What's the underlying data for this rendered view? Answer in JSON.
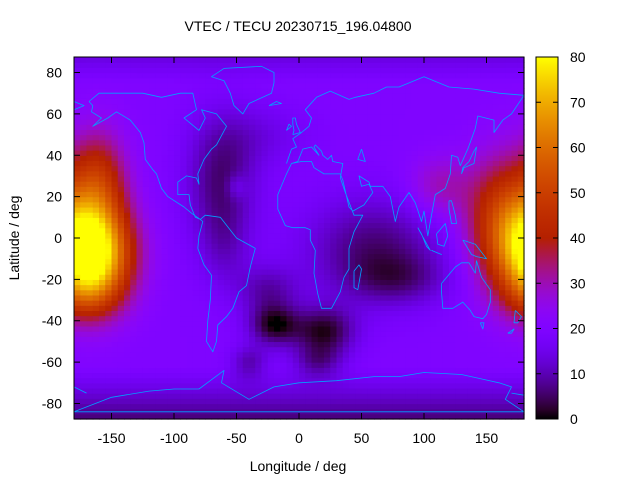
{
  "chart_data": {
    "type": "heatmap",
    "title": "VTEC / TECU 20230715_196.04800",
    "xlabel": "Longitude / deg",
    "ylabel": "Latitude / deg",
    "xlim": [
      -180,
      180
    ],
    "ylim": [
      -87.5,
      87.5
    ],
    "x_ticks": [
      -150,
      -100,
      -50,
      0,
      50,
      100,
      150
    ],
    "y_ticks": [
      -80,
      -60,
      -40,
      -20,
      0,
      20,
      40,
      60,
      80
    ],
    "colorbar": {
      "range": [
        0,
        80
      ],
      "ticks": [
        0,
        10,
        20,
        30,
        40,
        50,
        60,
        70,
        80
      ],
      "palette": "black-purple-red-orange-yellow"
    },
    "coastline_color": "#00a2ff",
    "grid_step": {
      "lon": 5,
      "lat": 2.5
    },
    "features": [
      {
        "lon": -165,
        "lat": -8,
        "value": 64,
        "lon_radius": 30,
        "lat_radius": 24
      },
      {
        "lon": -160,
        "lat": 28,
        "value": 22,
        "lon_radius": 22,
        "lat_radius": 24
      },
      {
        "lon": -172,
        "lat": -28,
        "value": 8,
        "lon_radius": 25,
        "lat_radius": 12
      },
      {
        "lon": 165,
        "lat": 8,
        "value": 30,
        "lon_radius": 30,
        "lat_radius": 30
      },
      {
        "lon": 112,
        "lat": 25,
        "value": 10,
        "lon_radius": 25,
        "lat_radius": 15
      },
      {
        "lon": -62,
        "lat": 28,
        "value": -14,
        "lon_radius": 28,
        "lat_radius": 30
      },
      {
        "lon": 60,
        "lat": -5,
        "value": -14,
        "lon_radius": 55,
        "lat_radius": 25
      },
      {
        "lon": -25,
        "lat": -25,
        "value": -10,
        "lon_radius": 25,
        "lat_radius": 12
      },
      {
        "lon": -20,
        "lat": -42,
        "value": -18,
        "lon_radius": 20,
        "lat_radius": 10
      },
      {
        "lon": 20,
        "lat": -45,
        "value": -18,
        "lon_radius": 25,
        "lat_radius": 12
      },
      {
        "lon": -40,
        "lat": -60,
        "value": -10,
        "lon_radius": 15,
        "lat_radius": 8
      },
      {
        "lon": 15,
        "lat": -60,
        "value": -10,
        "lon_radius": 20,
        "lat_radius": 8
      },
      {
        "lon": -60,
        "lat": -5,
        "value": -6,
        "lon_radius": 20,
        "lat_radius": 20
      },
      {
        "lon": -30,
        "lat": 50,
        "value": -5,
        "lon_radius": 40,
        "lat_radius": 15
      },
      {
        "lon": -50,
        "lat": 25,
        "value": 6,
        "lon_radius": 8,
        "lat_radius": 6
      },
      {
        "lon": 80,
        "lat": -20,
        "value": -8,
        "lon_radius": 40,
        "lat_radius": 12
      }
    ]
  }
}
